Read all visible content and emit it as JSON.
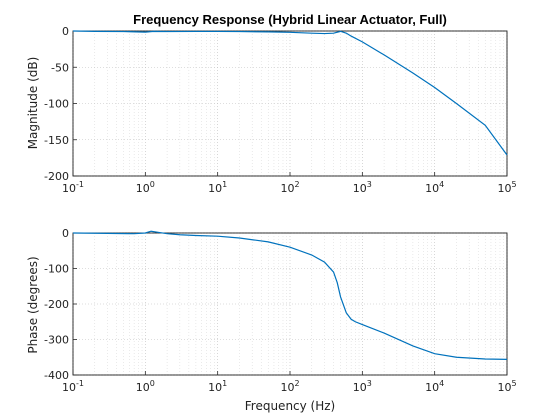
{
  "chart_data": [
    {
      "type": "line",
      "title": "Frequency Response (Hybrid Linear Actuator, Full)",
      "xlabel": "",
      "ylabel": "Magnitude (dB)",
      "xscale": "log",
      "xlim": [
        0.1,
        100000
      ],
      "ylim": [
        -200,
        0
      ],
      "x_ticks": [
        "10^-1",
        "10^0",
        "10^1",
        "10^2",
        "10^3",
        "10^4",
        "10^5"
      ],
      "y_ticks": [
        0,
        -50,
        -100,
        -150,
        -200
      ],
      "grid": true,
      "color": "#0072BD",
      "series": [
        {
          "x": [
            0.1,
            0.2,
            0.5,
            1,
            1.3,
            2,
            5,
            10,
            20,
            50,
            100,
            200,
            300,
            400,
            500,
            600,
            700,
            1000,
            2000,
            5000,
            10000,
            20000,
            50000,
            100000
          ],
          "y": [
            0,
            -0.5,
            -0.8,
            -1.5,
            -0.5,
            -0.8,
            -0.6,
            -0.6,
            -0.8,
            -1.2,
            -1.8,
            -3,
            -3.5,
            -3,
            -0.5,
            -3,
            -7,
            -15,
            -33,
            -58,
            -78,
            -100,
            -130,
            -171
          ]
        }
      ]
    },
    {
      "type": "line",
      "title": "",
      "xlabel": "Frequency (Hz)",
      "ylabel": "Phase (degrees)",
      "xscale": "log",
      "xlim": [
        0.1,
        100000
      ],
      "ylim": [
        -400,
        0
      ],
      "x_ticks": [
        "10^-1",
        "10^0",
        "10^1",
        "10^2",
        "10^3",
        "10^4",
        "10^5"
      ],
      "y_ticks": [
        0,
        -100,
        -200,
        -300,
        -400
      ],
      "grid": true,
      "color": "#0072BD",
      "series": [
        {
          "x": [
            0.1,
            0.3,
            0.7,
            1,
            1.2,
            1.5,
            2,
            3,
            5,
            10,
            20,
            50,
            100,
            200,
            300,
            400,
            450,
            500,
            600,
            700,
            800,
            1000,
            2000,
            5000,
            10000,
            20000,
            50000,
            100000
          ],
          "y": [
            0,
            -1,
            -2,
            0,
            5,
            2,
            -2,
            -5,
            -7,
            -9,
            -14,
            -25,
            -40,
            -62,
            -82,
            -110,
            -140,
            -180,
            -225,
            -243,
            -250,
            -258,
            -282,
            -318,
            -340,
            -350,
            -355,
            -356
          ]
        }
      ]
    }
  ]
}
